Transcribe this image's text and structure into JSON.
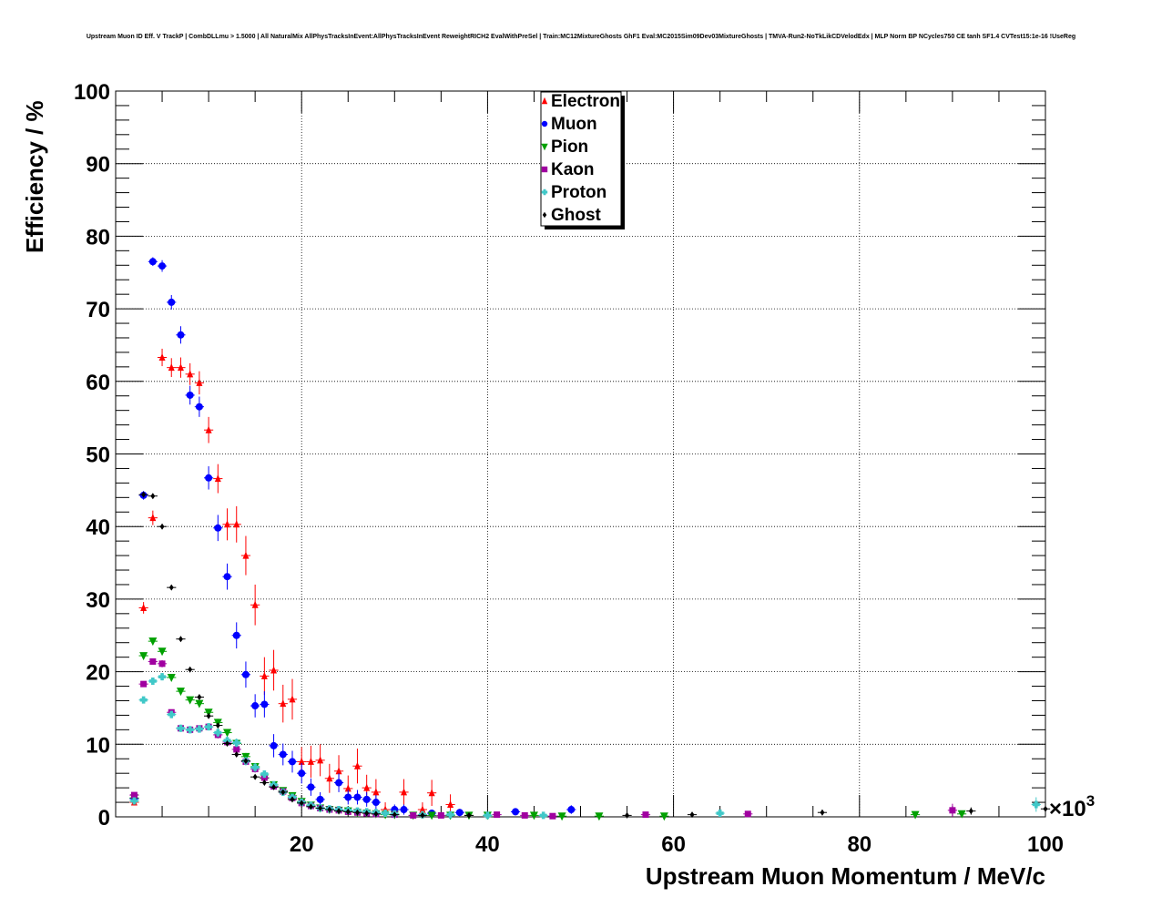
{
  "chart_data": {
    "type": "scatter",
    "title": "Upstream Muon ID Eff. V TrackP | CombDLLmu > 1.5000 | All NaturalMix AllPhysTracksInEvent:AllPhysTracksInEvent ReweightRICH2 EvalWithPreSel | Train:MC12MixtureGhosts GhF1 Eval:MC2015Sim09Dev03MixtureGhosts | TMVA-Run2-NoTkLikCDVelodEdx | MLP Norm BP NCycles750 CE tanh SF1.4 CVTest15:1e-16 !UseReg",
    "xlabel": "Upstream Muon Momentum / MeV/c",
    "ylabel": "Efficiency / %",
    "x_exponent_base": "×10",
    "x_exponent_power": "3",
    "xlim": [
      0,
      100
    ],
    "ylim": [
      0,
      100
    ],
    "xticks": [
      20,
      40,
      60,
      80,
      100
    ],
    "yticks": [
      0,
      10,
      20,
      30,
      40,
      50,
      60,
      70,
      80,
      90,
      100
    ],
    "grid": true,
    "legend_position": "top-center",
    "series": [
      {
        "name": "Electron",
        "marker": "triangle-up",
        "color": "#ff0000",
        "points": [
          [
            2,
            2.0,
            0.4
          ],
          [
            3,
            28.8,
            0.8
          ],
          [
            4,
            41.2,
            1.0
          ],
          [
            5,
            63.3,
            1.2
          ],
          [
            6,
            61.9,
            1.3
          ],
          [
            7,
            61.9,
            1.4
          ],
          [
            8,
            61.0,
            1.5
          ],
          [
            9,
            59.8,
            1.6
          ],
          [
            10,
            53.3,
            1.8
          ],
          [
            11,
            46.6,
            2.0
          ],
          [
            12,
            40.3,
            2.2
          ],
          [
            13,
            40.3,
            2.5
          ],
          [
            14,
            36.0,
            2.7
          ],
          [
            15,
            29.2,
            2.8
          ],
          [
            16,
            19.4,
            2.6
          ],
          [
            17,
            20.2,
            2.8
          ],
          [
            18,
            15.6,
            2.6
          ],
          [
            19,
            16.2,
            2.8
          ],
          [
            20,
            7.6,
            2.0
          ],
          [
            21,
            7.6,
            2.2
          ],
          [
            22,
            7.8,
            2.2
          ],
          [
            23,
            5.3,
            2.0
          ],
          [
            24,
            6.3,
            2.2
          ],
          [
            25,
            3.9,
            1.8
          ],
          [
            26,
            7.0,
            2.4
          ],
          [
            27,
            4.0,
            1.8
          ],
          [
            28,
            3.4,
            1.8
          ],
          [
            29,
            1.0,
            1.0
          ],
          [
            31,
            3.4,
            1.8
          ],
          [
            33,
            1.0,
            1.0
          ],
          [
            34,
            3.3,
            1.8
          ],
          [
            36,
            1.7,
            1.4
          ]
        ]
      },
      {
        "name": "Muon",
        "marker": "circle",
        "color": "#0000ff",
        "points": [
          [
            2,
            2.5,
            0.3
          ],
          [
            3,
            44.3,
            0.6
          ],
          [
            4,
            76.5,
            0.6
          ],
          [
            5,
            75.9,
            0.8
          ],
          [
            6,
            70.9,
            1.0
          ],
          [
            7,
            66.4,
            1.2
          ],
          [
            8,
            58.1,
            1.3
          ],
          [
            9,
            56.5,
            1.4
          ],
          [
            10,
            46.7,
            1.6
          ],
          [
            11,
            39.8,
            1.8
          ],
          [
            12,
            33.1,
            1.8
          ],
          [
            13,
            25.0,
            1.8
          ],
          [
            14,
            19.6,
            1.8
          ],
          [
            15,
            15.3,
            1.6
          ],
          [
            16,
            15.5,
            1.8
          ],
          [
            17,
            9.8,
            1.6
          ],
          [
            18,
            8.6,
            1.5
          ],
          [
            19,
            7.6,
            1.5
          ],
          [
            20,
            6.0,
            1.4
          ],
          [
            21,
            4.1,
            1.2
          ],
          [
            22,
            2.4,
            1.0
          ],
          [
            24,
            4.7,
            1.3
          ],
          [
            25,
            2.7,
            1.0
          ],
          [
            26,
            2.7,
            1.0
          ],
          [
            27,
            2.4,
            1.0
          ],
          [
            28,
            2.0,
            1.0
          ],
          [
            30,
            1.0,
            0.7
          ],
          [
            31,
            1.0,
            0.7
          ],
          [
            34,
            0.5,
            0.5
          ],
          [
            37,
            0.6,
            0.5
          ],
          [
            43,
            0.7,
            0.5
          ],
          [
            49,
            1.0,
            0.6
          ]
        ]
      },
      {
        "name": "Pion",
        "marker": "triangle-down",
        "color": "#00a000",
        "points": [
          [
            2,
            2.6,
            0.2
          ],
          [
            3,
            22.2,
            0.3
          ],
          [
            4,
            24.2,
            0.4
          ],
          [
            5,
            22.8,
            0.4
          ],
          [
            6,
            19.2,
            0.4
          ],
          [
            7,
            17.3,
            0.4
          ],
          [
            8,
            16.1,
            0.4
          ],
          [
            9,
            15.6,
            0.4
          ],
          [
            10,
            14.4,
            0.4
          ],
          [
            11,
            13.0,
            0.5
          ],
          [
            12,
            11.6,
            0.5
          ],
          [
            13,
            10.1,
            0.5
          ],
          [
            14,
            8.3,
            0.5
          ],
          [
            15,
            6.9,
            0.5
          ],
          [
            16,
            5.3,
            0.4
          ],
          [
            17,
            4.4,
            0.4
          ],
          [
            18,
            3.6,
            0.4
          ],
          [
            19,
            2.9,
            0.4
          ],
          [
            20,
            2.1,
            0.4
          ],
          [
            21,
            1.6,
            0.3
          ],
          [
            22,
            1.2,
            0.3
          ],
          [
            23,
            1.0,
            0.3
          ],
          [
            24,
            0.9,
            0.3
          ],
          [
            25,
            0.8,
            0.3
          ],
          [
            26,
            0.6,
            0.2
          ],
          [
            27,
            0.5,
            0.2
          ],
          [
            28,
            0.4,
            0.2
          ],
          [
            29,
            0.3,
            0.2
          ],
          [
            30,
            0.3,
            0.2
          ],
          [
            32,
            0.2,
            0.2
          ],
          [
            34,
            0.2,
            0.2
          ],
          [
            36,
            0.2,
            0.2
          ],
          [
            38,
            0.2,
            0.2
          ],
          [
            40,
            0.2,
            0.2
          ],
          [
            45,
            0.2,
            0.2
          ],
          [
            48,
            0.1,
            0.1
          ],
          [
            52,
            0.1,
            0.1
          ],
          [
            59,
            0.1,
            0.1
          ],
          [
            86,
            0.3,
            0.3
          ],
          [
            91,
            0.4,
            0.4
          ]
        ]
      },
      {
        "name": "Kaon",
        "marker": "square",
        "color": "#a000a0",
        "points": [
          [
            2,
            3.0,
            0.3
          ],
          [
            3,
            18.3,
            0.4
          ],
          [
            4,
            21.4,
            0.4
          ],
          [
            5,
            21.1,
            0.5
          ],
          [
            6,
            14.4,
            0.4
          ],
          [
            7,
            12.2,
            0.4
          ],
          [
            8,
            12.0,
            0.4
          ],
          [
            9,
            12.2,
            0.4
          ],
          [
            10,
            12.4,
            0.4
          ],
          [
            11,
            11.3,
            0.5
          ],
          [
            12,
            10.3,
            0.5
          ],
          [
            13,
            9.3,
            0.5
          ],
          [
            14,
            7.6,
            0.5
          ],
          [
            15,
            6.6,
            0.5
          ],
          [
            16,
            5.4,
            0.4
          ],
          [
            17,
            4.2,
            0.4
          ],
          [
            18,
            3.5,
            0.4
          ],
          [
            19,
            2.6,
            0.4
          ],
          [
            20,
            1.9,
            0.3
          ],
          [
            21,
            1.5,
            0.3
          ],
          [
            22,
            1.2,
            0.3
          ],
          [
            23,
            1.0,
            0.3
          ],
          [
            24,
            0.9,
            0.3
          ],
          [
            25,
            0.7,
            0.3
          ],
          [
            26,
            0.6,
            0.2
          ],
          [
            27,
            0.5,
            0.2
          ],
          [
            28,
            0.4,
            0.2
          ],
          [
            30,
            0.3,
            0.2
          ],
          [
            32,
            0.2,
            0.2
          ],
          [
            35,
            0.2,
            0.2
          ],
          [
            41,
            0.3,
            0.3
          ],
          [
            44,
            0.2,
            0.2
          ],
          [
            47,
            0.1,
            0.1
          ],
          [
            57,
            0.3,
            0.3
          ],
          [
            68,
            0.4,
            0.4
          ],
          [
            90,
            0.9,
            0.9
          ]
        ]
      },
      {
        "name": "Proton",
        "marker": "cross",
        "color": "#40c8c8",
        "points": [
          [
            2,
            2.2,
            0.3
          ],
          [
            3,
            16.1,
            0.4
          ],
          [
            4,
            18.7,
            0.5
          ],
          [
            5,
            19.3,
            0.5
          ],
          [
            6,
            14.1,
            0.5
          ],
          [
            7,
            12.2,
            0.5
          ],
          [
            8,
            12.0,
            0.5
          ],
          [
            9,
            12.1,
            0.5
          ],
          [
            10,
            12.4,
            0.5
          ],
          [
            11,
            11.6,
            0.6
          ],
          [
            12,
            10.5,
            0.6
          ],
          [
            13,
            10.2,
            0.6
          ],
          [
            14,
            7.7,
            0.6
          ],
          [
            15,
            6.8,
            0.6
          ],
          [
            16,
            5.9,
            0.5
          ],
          [
            17,
            4.4,
            0.5
          ],
          [
            18,
            3.4,
            0.5
          ],
          [
            19,
            2.7,
            0.5
          ],
          [
            20,
            2.0,
            0.4
          ],
          [
            21,
            1.6,
            0.4
          ],
          [
            22,
            1.2,
            0.3
          ],
          [
            23,
            1.1,
            0.3
          ],
          [
            24,
            1.0,
            0.3
          ],
          [
            25,
            0.9,
            0.3
          ],
          [
            26,
            0.8,
            0.3
          ],
          [
            27,
            0.7,
            0.3
          ],
          [
            28,
            0.6,
            0.3
          ],
          [
            29,
            0.5,
            0.2
          ],
          [
            30,
            0.4,
            0.2
          ],
          [
            33,
            0.3,
            0.2
          ],
          [
            36,
            0.3,
            0.2
          ],
          [
            40,
            0.2,
            0.2
          ],
          [
            46,
            0.2,
            0.2
          ],
          [
            65,
            0.5,
            0.5
          ],
          [
            99,
            1.7,
            1.0
          ]
        ]
      },
      {
        "name": "Ghost",
        "marker": "diamond",
        "color": "#000000",
        "points": [
          [
            3,
            44.4,
            0.3
          ],
          [
            4,
            44.2,
            0.3
          ],
          [
            5,
            40.0,
            0.3
          ],
          [
            6,
            31.6,
            0.3
          ],
          [
            7,
            24.5,
            0.3
          ],
          [
            8,
            20.3,
            0.3
          ],
          [
            9,
            16.5,
            0.3
          ],
          [
            10,
            13.9,
            0.3
          ],
          [
            11,
            12.6,
            0.3
          ],
          [
            12,
            10.1,
            0.3
          ],
          [
            13,
            8.6,
            0.3
          ],
          [
            14,
            7.7,
            0.3
          ],
          [
            15,
            5.5,
            0.3
          ],
          [
            16,
            4.7,
            0.3
          ],
          [
            17,
            4.1,
            0.3
          ],
          [
            18,
            3.4,
            0.3
          ],
          [
            19,
            2.4,
            0.3
          ],
          [
            20,
            1.9,
            0.3
          ],
          [
            21,
            1.4,
            0.3
          ],
          [
            22,
            1.2,
            0.3
          ],
          [
            23,
            1.0,
            0.3
          ],
          [
            24,
            0.8,
            0.3
          ],
          [
            25,
            0.7,
            0.3
          ],
          [
            26,
            0.6,
            0.3
          ],
          [
            27,
            0.5,
            0.3
          ],
          [
            28,
            0.4,
            0.3
          ],
          [
            30,
            0.3,
            0.2
          ],
          [
            33,
            0.2,
            0.2
          ],
          [
            38,
            0.2,
            0.2
          ],
          [
            55,
            0.2,
            0.2
          ],
          [
            62,
            0.3,
            0.2
          ],
          [
            76,
            0.6,
            0.4
          ],
          [
            92,
            0.8,
            0.5
          ],
          [
            100,
            1.1,
            0.6
          ]
        ]
      }
    ]
  }
}
